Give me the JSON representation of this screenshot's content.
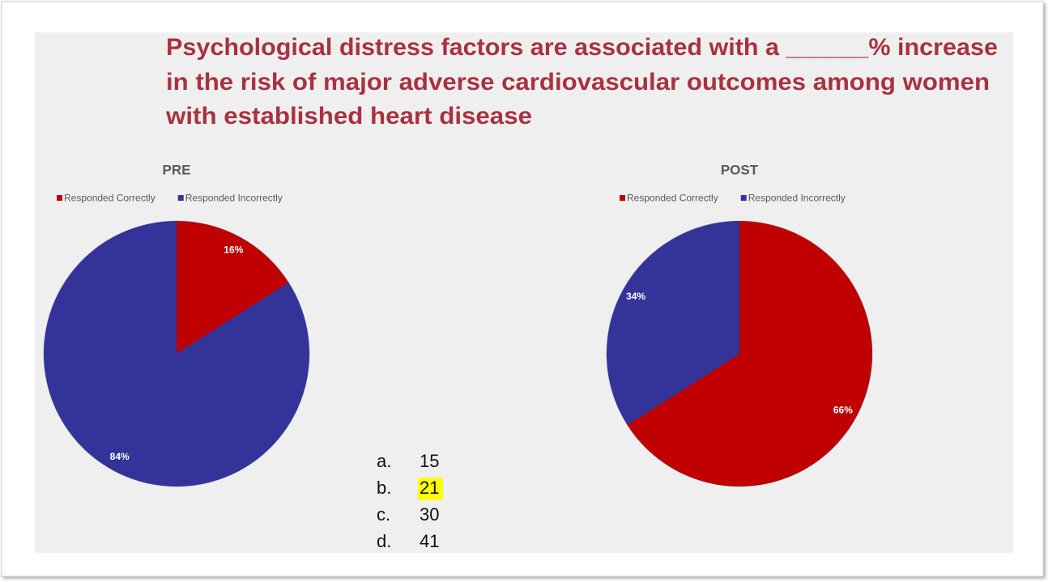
{
  "title": [
    "Psychological distress factors are associated with a ______% increase",
    "in the risk of major adverse cardiovascular outcomes among women",
    "with established heart disease"
  ],
  "chart_data": [
    {
      "type": "pie",
      "title": "PRE",
      "categories": [
        "Responded Correctly",
        "Responded Incorrectly"
      ],
      "values": [
        16,
        84
      ],
      "value_labels": [
        "16%",
        "84%"
      ],
      "colors": [
        "#c00000",
        "#333399"
      ],
      "legend": "top"
    },
    {
      "type": "pie",
      "title": "POST",
      "categories": [
        "Responded Correctly",
        "Responded Incorrectly"
      ],
      "values": [
        66,
        34
      ],
      "value_labels": [
        "66%",
        "34%"
      ],
      "colors": [
        "#c00000",
        "#333399"
      ],
      "legend": "top"
    }
  ],
  "options": [
    {
      "letter": "a.",
      "value": "15"
    },
    {
      "letter": "b.",
      "value": "21",
      "highlight": true
    },
    {
      "letter": "c.",
      "value": "30"
    },
    {
      "letter": "d.",
      "value": "41"
    }
  ]
}
